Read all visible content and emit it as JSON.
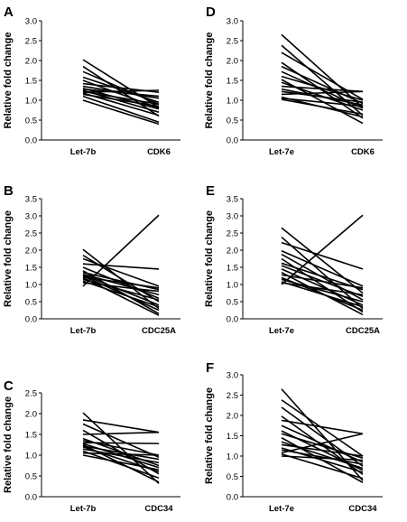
{
  "chart_data": [
    {
      "panel": "A",
      "type": "line",
      "ylabel": "Relative fold change",
      "categories": [
        "Let-7b",
        "CDK6"
      ],
      "ylim": [
        0,
        3.0
      ],
      "yticks": [
        "0.0",
        "0.5",
        "1.0",
        "1.5",
        "2.0",
        "2.5",
        "3.0"
      ],
      "series": [
        {
          "values": [
            2.02,
            0.82
          ]
        },
        {
          "values": [
            1.85,
            0.6
          ]
        },
        {
          "values": [
            1.72,
            0.9
          ]
        },
        {
          "values": [
            1.58,
            0.95
          ]
        },
        {
          "values": [
            1.5,
            0.8
          ]
        },
        {
          "values": [
            1.42,
            1.2
          ]
        },
        {
          "values": [
            1.35,
            1.05
          ]
        },
        {
          "values": [
            1.3,
            0.78
          ]
        },
        {
          "values": [
            1.28,
            1.1
          ]
        },
        {
          "values": [
            1.25,
            0.7
          ]
        },
        {
          "values": [
            1.22,
            0.9
          ]
        },
        {
          "values": [
            1.2,
            1.25
          ]
        },
        {
          "values": [
            1.18,
            0.62
          ]
        },
        {
          "values": [
            1.15,
            0.85
          ]
        },
        {
          "values": [
            1.1,
            0.45
          ]
        },
        {
          "values": [
            1.0,
            0.4
          ]
        }
      ]
    },
    {
      "panel": "D",
      "type": "line",
      "ylabel": "Relative fold change",
      "categories": [
        "Let-7e",
        "CDK6"
      ],
      "ylim": [
        0,
        3.0
      ],
      "yticks": [
        "0.0",
        "0.5",
        "1.0",
        "1.5",
        "2.0",
        "2.5",
        "3.0"
      ],
      "series": [
        {
          "values": [
            2.65,
            0.82
          ]
        },
        {
          "values": [
            2.38,
            0.62
          ]
        },
        {
          "values": [
            2.2,
            1.02
          ]
        },
        {
          "values": [
            1.95,
            0.55
          ]
        },
        {
          "values": [
            1.85,
            0.92
          ]
        },
        {
          "values": [
            1.72,
            0.8
          ]
        },
        {
          "values": [
            1.6,
            1.0
          ]
        },
        {
          "values": [
            1.52,
            0.42
          ]
        },
        {
          "values": [
            1.45,
            0.75
          ]
        },
        {
          "values": [
            1.35,
            1.22
          ]
        },
        {
          "values": [
            1.28,
            0.88
          ]
        },
        {
          "values": [
            1.22,
            0.95
          ]
        },
        {
          "values": [
            1.15,
            1.22
          ]
        },
        {
          "values": [
            1.08,
            0.58
          ]
        },
        {
          "values": [
            1.05,
            0.85
          ]
        },
        {
          "values": [
            1.02,
            0.65
          ]
        }
      ]
    },
    {
      "panel": "B",
      "type": "line",
      "ylabel": "Relative fold change",
      "categories": [
        "Let-7b",
        "CDC25A"
      ],
      "ylim": [
        0,
        3.5
      ],
      "yticks": [
        "0.0",
        "0.5",
        "1.0",
        "1.5",
        "2.0",
        "2.5",
        "3.0",
        "3.5"
      ],
      "series": [
        {
          "values": [
            2.02,
            0.3
          ]
        },
        {
          "values": [
            1.85,
            0.5
          ]
        },
        {
          "values": [
            1.75,
            0.95
          ]
        },
        {
          "values": [
            1.6,
            1.45
          ]
        },
        {
          "values": [
            1.5,
            0.6
          ]
        },
        {
          "values": [
            1.4,
            0.15
          ]
        },
        {
          "values": [
            1.35,
            0.85
          ]
        },
        {
          "values": [
            1.3,
            0.7
          ]
        },
        {
          "values": [
            1.28,
            0.4
          ]
        },
        {
          "values": [
            1.25,
            0.25
          ]
        },
        {
          "values": [
            1.22,
            0.9
          ]
        },
        {
          "values": [
            1.2,
            0.1
          ]
        },
        {
          "values": [
            1.15,
            0.55
          ]
        },
        {
          "values": [
            1.1,
            0.35
          ]
        },
        {
          "values": [
            1.05,
            0.8
          ]
        },
        {
          "values": [
            0.95,
            3.02
          ]
        }
      ]
    },
    {
      "panel": "E",
      "type": "line",
      "ylabel": "Relative fold change",
      "categories": [
        "Let-7e",
        "CDC25A"
      ],
      "ylim": [
        0,
        3.5
      ],
      "yticks": [
        "0.0",
        "0.5",
        "1.0",
        "1.5",
        "2.0",
        "2.5",
        "3.0",
        "3.5"
      ],
      "series": [
        {
          "values": [
            2.65,
            0.75
          ]
        },
        {
          "values": [
            2.38,
            0.3
          ]
        },
        {
          "values": [
            2.22,
            1.45
          ]
        },
        {
          "values": [
            1.98,
            0.95
          ]
        },
        {
          "values": [
            1.88,
            0.55
          ]
        },
        {
          "values": [
            1.75,
            0.2
          ]
        },
        {
          "values": [
            1.62,
            0.85
          ]
        },
        {
          "values": [
            1.55,
            0.65
          ]
        },
        {
          "values": [
            1.45,
            0.4
          ]
        },
        {
          "values": [
            1.35,
            0.12
          ]
        },
        {
          "values": [
            1.28,
            0.9
          ]
        },
        {
          "values": [
            1.2,
            0.25
          ]
        },
        {
          "values": [
            1.15,
            0.5
          ]
        },
        {
          "values": [
            1.08,
            0.35
          ]
        },
        {
          "values": [
            1.05,
            0.7
          ]
        },
        {
          "values": [
            1.0,
            3.02
          ]
        }
      ]
    },
    {
      "panel": "C",
      "type": "line",
      "ylabel": "Relative fold change",
      "categories": [
        "Let-7b",
        "CDC34"
      ],
      "ylim": [
        0,
        2.5
      ],
      "yticks": [
        "0.0",
        "0.5",
        "1.0",
        "1.5",
        "2.0",
        "2.5"
      ],
      "series": [
        {
          "values": [
            2.02,
            0.32
          ]
        },
        {
          "values": [
            1.85,
            1.55
          ]
        },
        {
          "values": [
            1.75,
            0.95
          ]
        },
        {
          "values": [
            1.6,
            0.55
          ]
        },
        {
          "values": [
            1.5,
            1.55
          ]
        },
        {
          "values": [
            1.4,
            0.75
          ]
        },
        {
          "values": [
            1.35,
            1.0
          ]
        },
        {
          "values": [
            1.3,
            1.28
          ]
        },
        {
          "values": [
            1.28,
            0.7
          ]
        },
        {
          "values": [
            1.25,
            0.35
          ]
        },
        {
          "values": [
            1.22,
            0.9
          ]
        },
        {
          "values": [
            1.2,
            0.6
          ]
        },
        {
          "values": [
            1.15,
            0.82
          ]
        },
        {
          "values": [
            1.1,
            0.45
          ]
        },
        {
          "values": [
            1.05,
            1.0
          ]
        },
        {
          "values": [
            1.0,
            0.65
          ]
        }
      ]
    },
    {
      "panel": "F",
      "type": "line",
      "ylabel": "Relative fold change",
      "categories": [
        "Let-7e",
        "CDC34"
      ],
      "ylim": [
        0,
        3.0
      ],
      "yticks": [
        "0.0",
        "0.5",
        "1.0",
        "1.5",
        "2.0",
        "2.5",
        "3.0"
      ],
      "series": [
        {
          "values": [
            2.65,
            0.4
          ]
        },
        {
          "values": [
            2.38,
            1.0
          ]
        },
        {
          "values": [
            2.2,
            0.75
          ]
        },
        {
          "values": [
            1.98,
            0.55
          ]
        },
        {
          "values": [
            1.88,
            1.55
          ]
        },
        {
          "values": [
            1.75,
            0.85
          ]
        },
        {
          "values": [
            1.62,
            0.65
          ]
        },
        {
          "values": [
            1.55,
            0.95
          ]
        },
        {
          "values": [
            1.45,
            0.35
          ]
        },
        {
          "values": [
            1.35,
            0.7
          ]
        },
        {
          "values": [
            1.28,
            1.0
          ]
        },
        {
          "values": [
            1.2,
            0.6
          ]
        },
        {
          "values": [
            1.15,
            0.8
          ]
        },
        {
          "values": [
            1.08,
            1.55
          ]
        },
        {
          "values": [
            1.05,
            0.45
          ]
        },
        {
          "values": [
            1.0,
            0.9
          ]
        }
      ]
    }
  ]
}
